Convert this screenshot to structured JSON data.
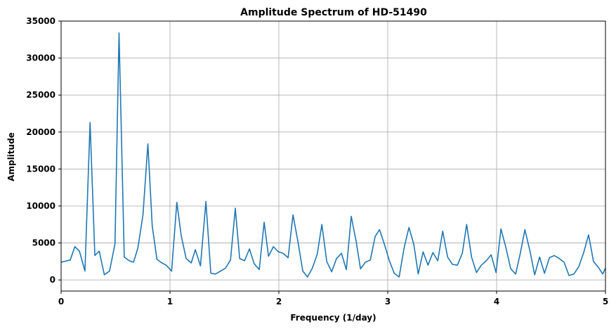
{
  "chart_data": {
    "type": "line",
    "title": "Amplitude Spectrum of HD-51490",
    "xlabel": "Frequency (1/day)",
    "ylabel": "Amplitude",
    "xlim": [
      0,
      5
    ],
    "ylim": [
      -1500,
      35000
    ],
    "xticks": [
      0,
      1,
      2,
      3,
      4,
      5
    ],
    "xtick_labels": [
      "0",
      "1",
      "2",
      "3",
      "4",
      "5"
    ],
    "yticks": [
      0,
      5000,
      10000,
      15000,
      20000,
      25000,
      30000,
      35000
    ],
    "ytick_labels": [
      "0",
      "5000",
      "10000",
      "15000",
      "20000",
      "25000",
      "30000",
      "35000"
    ],
    "grid": true,
    "color": "#1f77b4",
    "series": [
      {
        "x": [
          0.0,
          0.084,
          0.126,
          0.168,
          0.219,
          0.266,
          0.31,
          0.35,
          0.397,
          0.445,
          0.495,
          0.532,
          0.58,
          0.625,
          0.665,
          0.705,
          0.752,
          0.797,
          0.837,
          0.88,
          0.925,
          0.965,
          1.015,
          1.063,
          1.103,
          1.148,
          1.195,
          1.233,
          1.28,
          1.33,
          1.375,
          1.418,
          1.465,
          1.51,
          1.556,
          1.6,
          1.64,
          1.685,
          1.73,
          1.773,
          1.82,
          1.865,
          1.905,
          1.95,
          1.995,
          2.04,
          2.085,
          2.13,
          2.175,
          2.22,
          2.263,
          2.308,
          2.353,
          2.395,
          2.44,
          2.485,
          2.53,
          2.575,
          2.62,
          2.665,
          2.71,
          2.75,
          2.795,
          2.84,
          2.885,
          2.925,
          2.97,
          3.015,
          3.06,
          3.105,
          3.15,
          3.195,
          3.24,
          3.28,
          3.325,
          3.37,
          3.415,
          3.46,
          3.505,
          3.55,
          3.595,
          3.64,
          3.685,
          3.725,
          3.77,
          3.815,
          3.86,
          3.905,
          3.95,
          3.995,
          4.04,
          4.085,
          4.13,
          4.175,
          4.215,
          4.26,
          4.305,
          4.35,
          4.395,
          4.44,
          4.485,
          4.53,
          4.575,
          4.62,
          4.665,
          4.71,
          4.755,
          4.8,
          4.845,
          4.89,
          4.935,
          4.975,
          5.0
        ],
        "y": [
          2400,
          2700,
          4500,
          3900,
          1200,
          21300,
          3300,
          3900,
          700,
          1200,
          4900,
          33400,
          3100,
          2600,
          2400,
          4300,
          8800,
          18400,
          7300,
          2800,
          2300,
          2000,
          1200,
          10500,
          6000,
          2900,
          2300,
          4100,
          1900,
          10600,
          900,
          800,
          1200,
          1600,
          2700,
          9700,
          2900,
          2600,
          4200,
          2200,
          1400,
          7800,
          3200,
          4500,
          3800,
          3600,
          3000,
          8800,
          5200,
          1200,
          400,
          1600,
          3500,
          7500,
          2500,
          1100,
          2900,
          3600,
          1400,
          8600,
          5200,
          1500,
          2400,
          2700,
          5900,
          6800,
          4800,
          2600,
          900,
          400,
          4300,
          7100,
          4800,
          800,
          3800,
          2000,
          3700,
          2600,
          6600,
          3100,
          2100,
          2000,
          3600,
          7500,
          3100,
          1000,
          2000,
          2600,
          3400,
          1000,
          6900,
          4400,
          1500,
          800,
          3400,
          6800,
          4000,
          700,
          3100,
          900,
          3000,
          3300,
          2900,
          2400,
          600,
          800,
          1800,
          3700,
          6100,
          2500,
          1700,
          800,
          1600
        ]
      }
    ]
  }
}
